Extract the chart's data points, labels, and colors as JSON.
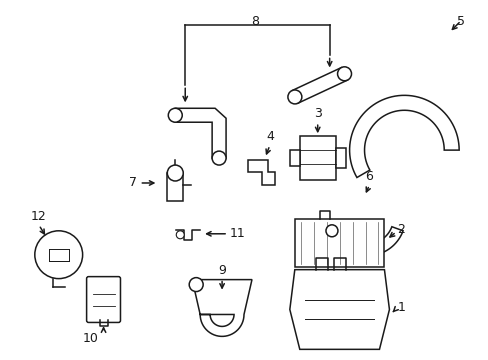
{
  "bg_color": "#ffffff",
  "line_color": "#1a1a1a",
  "fig_width": 4.89,
  "fig_height": 3.6,
  "dpi": 100,
  "label_fontsize": 9,
  "lw": 1.1
}
